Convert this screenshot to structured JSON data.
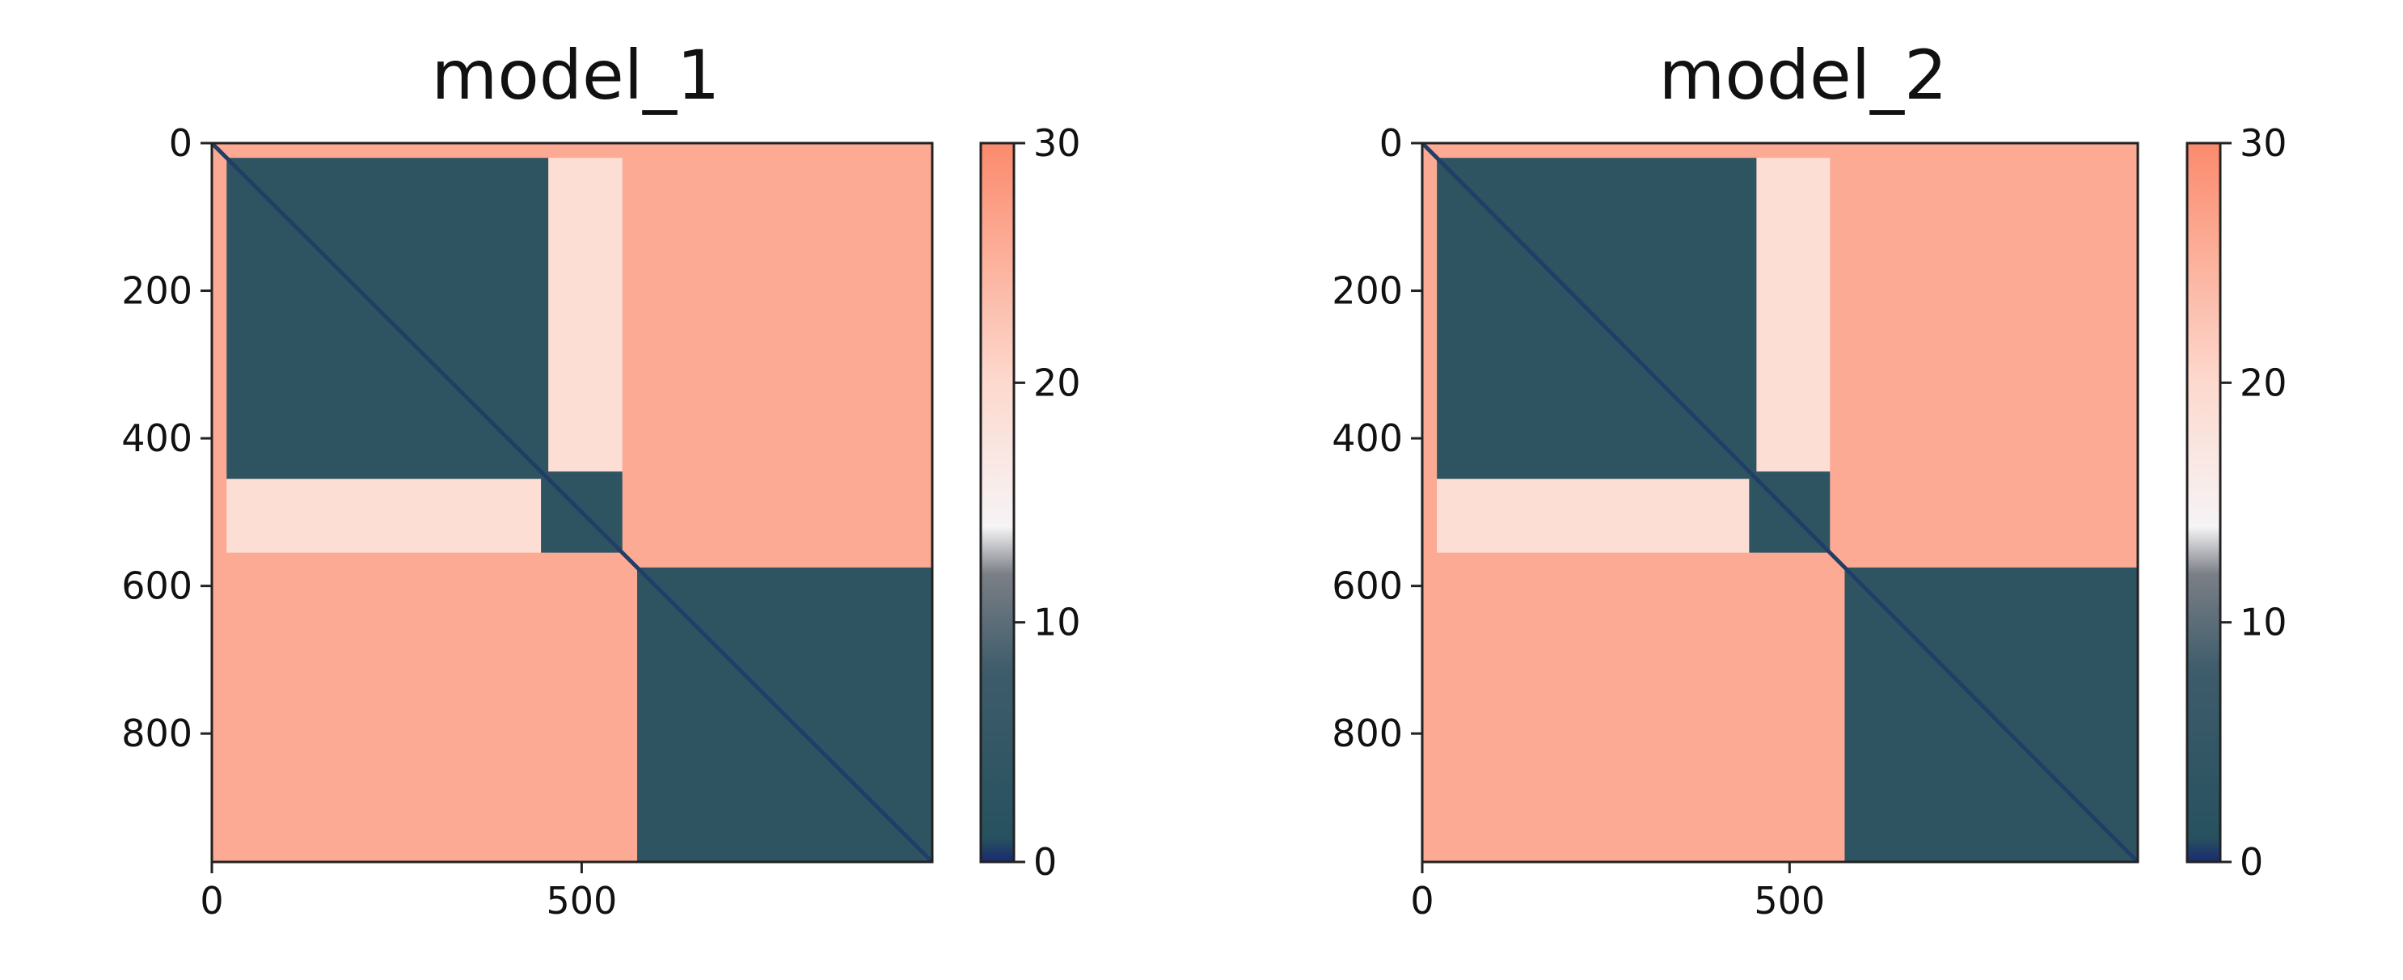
{
  "chart_data": [
    {
      "type": "heatmap",
      "title": "model_1",
      "xlabel": "",
      "ylabel": "",
      "x_range": [
        0,
        974
      ],
      "y_range": [
        0,
        974
      ],
      "x_ticks": [
        0,
        500
      ],
      "y_ticks": [
        0,
        200,
        400,
        600,
        800
      ],
      "colorbar": {
        "min": 0,
        "max": 30,
        "ticks": [
          0,
          10,
          20,
          30
        ]
      },
      "colormap": [
        {
          "value": 0,
          "color": "#1a2a6e"
        },
        {
          "value": 1,
          "color": "#27515f"
        },
        {
          "value": 8,
          "color": "#3e5c6b"
        },
        {
          "value": 12,
          "color": "#7a7f86"
        },
        {
          "value": 14,
          "color": "#f6f4f6"
        },
        {
          "value": 20,
          "color": "#fdd9ce"
        },
        {
          "value": 30,
          "color": "#fb8a6c"
        }
      ],
      "blocks": [
        {
          "x": [
            0,
            974
          ],
          "y": [
            0,
            974
          ],
          "value": 26
        },
        {
          "x": [
            20,
            455
          ],
          "y": [
            20,
            455
          ],
          "value": 3
        },
        {
          "x": [
            455,
            555
          ],
          "y": [
            20,
            455
          ],
          "value": 19
        },
        {
          "x": [
            20,
            455
          ],
          "y": [
            455,
            555
          ],
          "value": 19
        },
        {
          "x": [
            445,
            555
          ],
          "y": [
            445,
            555
          ],
          "value": 3
        },
        {
          "x": [
            575,
            974
          ],
          "y": [
            575,
            974
          ],
          "value": 3
        }
      ]
    },
    {
      "type": "heatmap",
      "title": "model_2",
      "xlabel": "",
      "ylabel": "",
      "x_range": [
        0,
        974
      ],
      "y_range": [
        0,
        974
      ],
      "x_ticks": [
        0,
        500
      ],
      "y_ticks": [
        0,
        200,
        400,
        600,
        800
      ],
      "colorbar": {
        "min": 0,
        "max": 30,
        "ticks": [
          0,
          10,
          20,
          30
        ]
      },
      "colormap": [
        {
          "value": 0,
          "color": "#1a2a6e"
        },
        {
          "value": 1,
          "color": "#27515f"
        },
        {
          "value": 8,
          "color": "#3e5c6b"
        },
        {
          "value": 12,
          "color": "#7a7f86"
        },
        {
          "value": 14,
          "color": "#f6f4f6"
        },
        {
          "value": 20,
          "color": "#fdd9ce"
        },
        {
          "value": 30,
          "color": "#fb8a6c"
        }
      ],
      "blocks": [
        {
          "x": [
            0,
            974
          ],
          "y": [
            0,
            974
          ],
          "value": 26
        },
        {
          "x": [
            20,
            455
          ],
          "y": [
            20,
            455
          ],
          "value": 3
        },
        {
          "x": [
            455,
            555
          ],
          "y": [
            20,
            455
          ],
          "value": 19
        },
        {
          "x": [
            20,
            455
          ],
          "y": [
            455,
            555
          ],
          "value": 19
        },
        {
          "x": [
            445,
            555
          ],
          "y": [
            445,
            555
          ],
          "value": 3
        },
        {
          "x": [
            575,
            974
          ],
          "y": [
            575,
            974
          ],
          "value": 3
        }
      ]
    }
  ]
}
